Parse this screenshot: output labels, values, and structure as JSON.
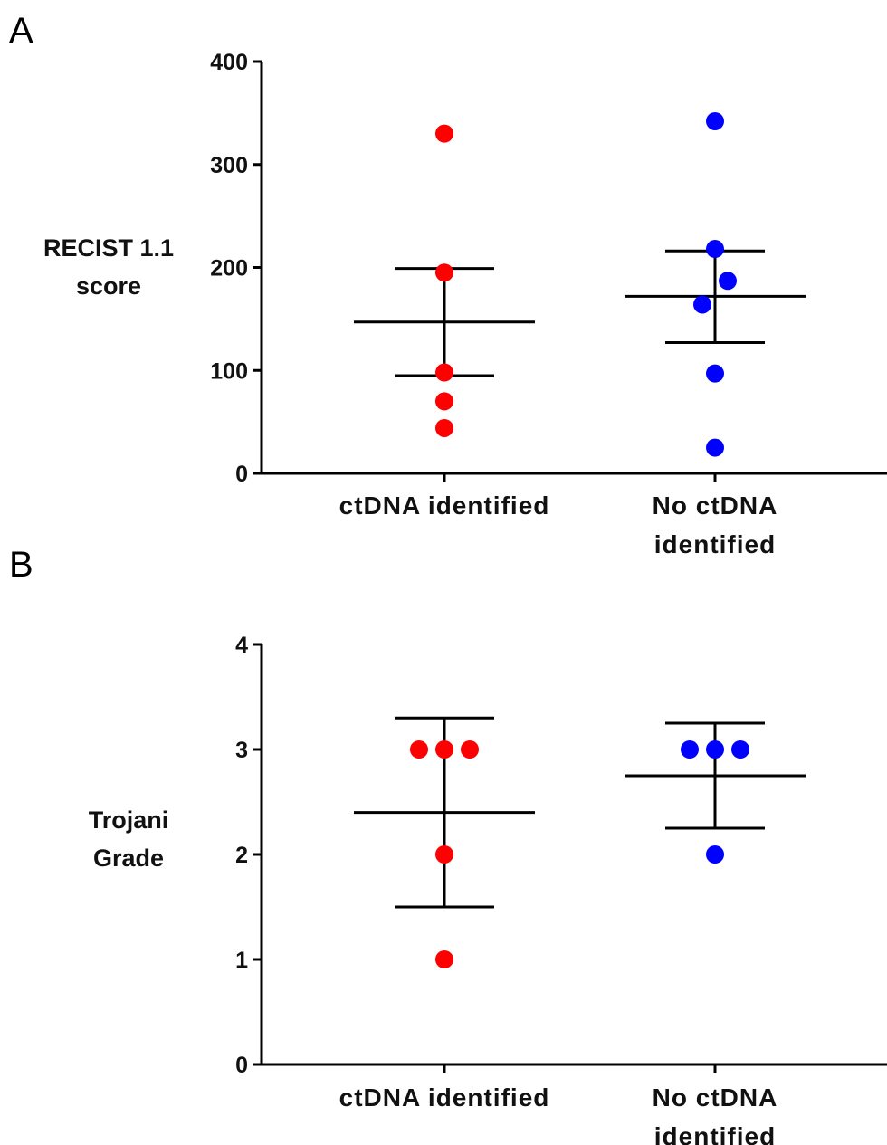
{
  "panels": [
    {
      "letter": "A",
      "chart_data": {
        "type": "scatter",
        "ylabel": [
          "RECIST 1.1",
          "score"
        ],
        "ylim": [
          0,
          400
        ],
        "yticks": [
          0,
          100,
          200,
          300,
          400
        ],
        "categories": [
          [
            "ctDNA identified"
          ],
          [
            "No ctDNA",
            "identified"
          ]
        ],
        "series": [
          {
            "category": 0,
            "color": "#ff0000",
            "points": [
              330,
              195,
              98,
              70,
              44
            ],
            "mean": 147,
            "err_low": 95,
            "err_high": 199
          },
          {
            "category": 1,
            "color": "#0000ff",
            "points": [
              342,
              218,
              187,
              164,
              97,
              25
            ],
            "mean": 172,
            "err_low": 127,
            "err_high": 216
          }
        ],
        "grid": false
      }
    },
    {
      "letter": "B",
      "chart_data": {
        "type": "scatter",
        "ylabel": [
          "Trojani",
          "Grade"
        ],
        "ylim": [
          0,
          4
        ],
        "yticks": [
          0,
          1,
          2,
          3,
          4
        ],
        "categories": [
          [
            "ctDNA identified"
          ],
          [
            "No ctDNA",
            "identified"
          ]
        ],
        "series": [
          {
            "category": 0,
            "color": "#ff0000",
            "points": [
              3,
              3,
              3,
              2,
              1
            ],
            "mean": 2.4,
            "err_low": 1.5,
            "err_high": 3.3
          },
          {
            "category": 1,
            "color": "#0000ff",
            "points": [
              3,
              3,
              3,
              2
            ],
            "mean": 2.75,
            "err_low": 2.25,
            "err_high": 3.25
          }
        ],
        "grid": false
      }
    }
  ]
}
